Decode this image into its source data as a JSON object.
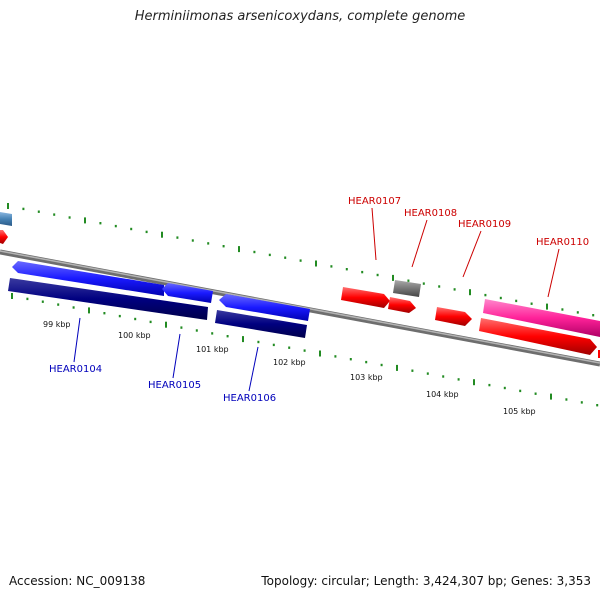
{
  "title": "Herminiimonas arsenicoxydans, complete genome",
  "footer": {
    "accession": "Accession: NC_009138",
    "topology": "Topology: circular; Length: 3,424,307 bp; Genes: 3,353"
  },
  "kbp_labels": [
    "99 kbp",
    "100 kbp",
    "101 kbp",
    "102 kbp",
    "103 kbp",
    "104 kbp",
    "105 kbp"
  ],
  "genes": [
    {
      "name": "HEAR0104",
      "strand": "reverse",
      "color": "#0000bb"
    },
    {
      "name": "HEAR0105",
      "strand": "reverse",
      "color": "#0000bb"
    },
    {
      "name": "HEAR0106",
      "strand": "reverse",
      "color": "#0000bb"
    },
    {
      "name": "HEAR0107",
      "strand": "forward",
      "color": "#cc0000"
    },
    {
      "name": "HEAR0108",
      "strand": "forward",
      "color": "#cc0000"
    },
    {
      "name": "HEAR0109",
      "strand": "forward",
      "color": "#cc0000"
    },
    {
      "name": "HEAR0110",
      "strand": "forward",
      "color": "#cc0000"
    }
  ],
  "colors": {
    "backbone": "#8c8c8c",
    "tick": "#228b22",
    "gene_blue": "#1a1aff",
    "gene_navy": "#000080",
    "gene_red": "#ff0000",
    "gene_gray": "#777777",
    "gene_pink": "#ff2299",
    "gene_steel": "#4682b4"
  }
}
